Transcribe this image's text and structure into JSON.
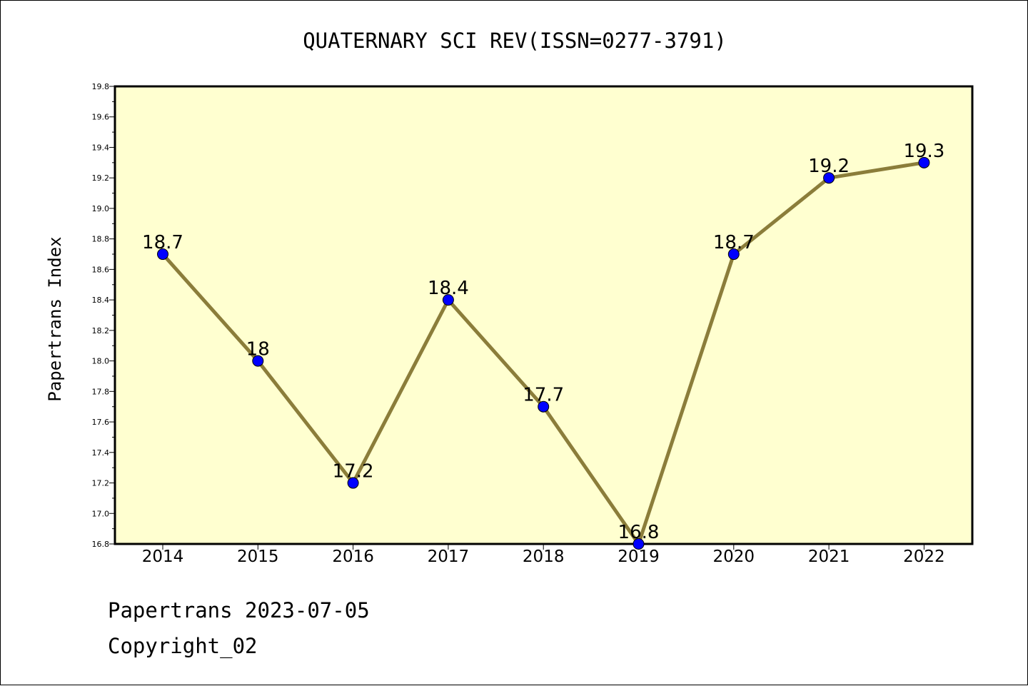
{
  "chart_data": {
    "type": "line",
    "title": "QUATERNARY SCI REV(ISSN=0277-3791)",
    "xlabel": "",
    "ylabel": "Papertrans Index",
    "categories": [
      "2014",
      "2015",
      "2016",
      "2017",
      "2018",
      "2019",
      "2020",
      "2021",
      "2022"
    ],
    "values": [
      18.7,
      18.0,
      17.2,
      18.4,
      17.7,
      16.8,
      18.7,
      19.2,
      19.3
    ],
    "data_labels": [
      "18.7",
      "18",
      "17.2",
      "18.4",
      "17.7",
      "16.8",
      "18.7",
      "19.2",
      "19.3"
    ],
    "ylim": [
      16.8,
      19.8
    ],
    "yticks": [
      "16.8",
      "17.0",
      "17.2",
      "17.4",
      "17.6",
      "17.8",
      "18.0",
      "18.2",
      "18.4",
      "18.6",
      "18.8",
      "19.0",
      "19.2",
      "19.4",
      "19.6",
      "19.8"
    ],
    "grid": false,
    "legend": "none",
    "colors": {
      "plot_background": "#ffffd0",
      "line": "#8b7d3a",
      "marker": "#0000ff"
    }
  },
  "footer": {
    "line1": "Papertrans 2023-07-05",
    "line2": "Copyright_02"
  }
}
